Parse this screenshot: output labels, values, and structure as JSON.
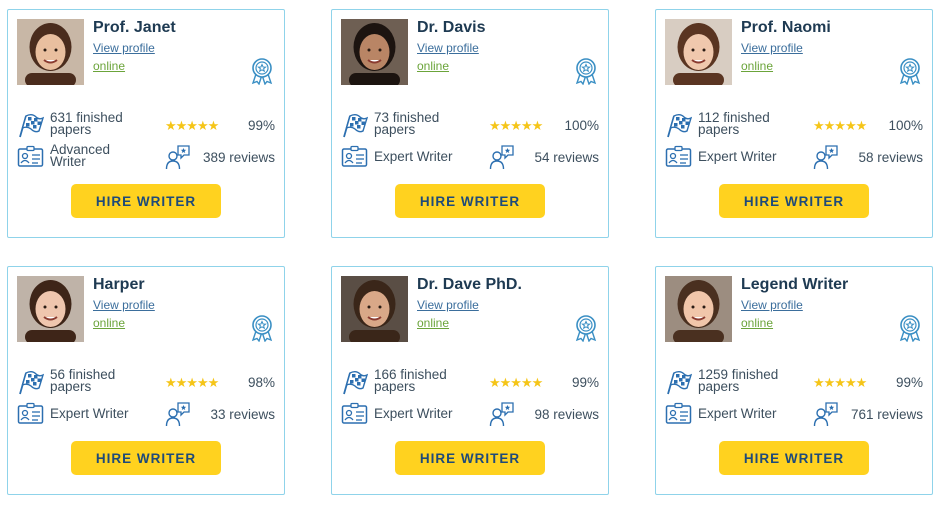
{
  "hire_label": "HIRE WRITER",
  "view_profile_label": "View profile",
  "colors": {
    "accent": "#ffd21f",
    "border": "#8fd3ea",
    "online": "#6ba43a",
    "link": "#3b6e9c",
    "stars": "#f5c518"
  },
  "writers": [
    {
      "name": "Prof. Janet",
      "status": "online",
      "papers": "631 finished papers",
      "stars": "★★★★★",
      "rating": 5,
      "success": "99%",
      "level": "Advanced Writer",
      "reviews": "389 reviews",
      "skin": "#e9bf9f",
      "hair": "#4a2c1d",
      "bg": "#c8b7a6"
    },
    {
      "name": "Dr. Davis",
      "status": "online",
      "papers": "73 finished papers",
      "stars": "★★★★★",
      "rating": 5,
      "success": "100%",
      "level": "Expert Writer",
      "reviews": "54 reviews",
      "skin": "#b98565",
      "hair": "#1c1410",
      "bg": "#6e5f53"
    },
    {
      "name": "Prof. Naomi",
      "status": "online",
      "papers": "112 finished papers",
      "stars": "★★★★★",
      "rating": 5,
      "success": "100%",
      "level": "Expert Writer",
      "reviews": "58 reviews",
      "skin": "#f0c8ad",
      "hair": "#5a3522",
      "bg": "#d8cdc2"
    },
    {
      "name": "Harper",
      "status": "online",
      "papers": "56 finished papers",
      "stars": "★★★★★",
      "rating": 5,
      "success": "98%",
      "level": "Expert Writer",
      "reviews": "33 reviews",
      "skin": "#efc6ae",
      "hair": "#3e2518",
      "bg": "#bfb3a8"
    },
    {
      "name": "Dr. Dave PhD.",
      "status": "online",
      "papers": "166 finished papers",
      "stars": "★★★★★",
      "rating": 5,
      "success": "99%",
      "level": "Expert Writer",
      "reviews": "98 reviews",
      "skin": "#d9a888",
      "hair": "#3a2619",
      "bg": "#5a4e45"
    },
    {
      "name": "Legend Writer",
      "status": "online",
      "papers": "1259 finished papers",
      "stars": "★★★★★",
      "rating": 5,
      "success": "99%",
      "level": "Expert Writer",
      "reviews": "761 reviews",
      "skin": "#f1c6aa",
      "hair": "#4a3020",
      "bg": "#9c8d80"
    }
  ]
}
